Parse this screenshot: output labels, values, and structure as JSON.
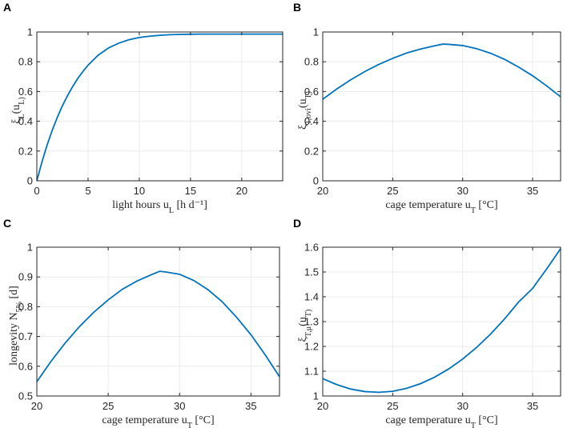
{
  "colors": {
    "line": "#0072bd",
    "grid": "#ebebeb",
    "axis": "#262626"
  },
  "chart_data": [
    {
      "panel": "A",
      "type": "line",
      "xlabel": "light hours u_L [h d⁻¹]",
      "ylabel": "ξ_L(u_L)",
      "xlim": [
        0,
        24
      ],
      "ylim": [
        0,
        1
      ],
      "xticks": [
        0,
        5,
        10,
        15,
        20
      ],
      "xtick_labels": [
        "0",
        "5",
        "10",
        "15",
        "20"
      ],
      "yticks": [
        0,
        0.2,
        0.4,
        0.6,
        0.8,
        1
      ],
      "ytick_labels": [
        "0",
        "0.2",
        "0.4",
        "0.6",
        "0.8",
        "1"
      ],
      "grid": true,
      "series": [
        {
          "name": "xi_L",
          "x": [
            0,
            0.5,
            1,
            1.5,
            2,
            2.5,
            3,
            3.5,
            4,
            4.5,
            5,
            6,
            7,
            8,
            9,
            10,
            11,
            12,
            13,
            14,
            15,
            16,
            18,
            20,
            22,
            24
          ],
          "y": [
            0,
            0.127,
            0.24,
            0.339,
            0.427,
            0.505,
            0.573,
            0.634,
            0.688,
            0.735,
            0.777,
            0.845,
            0.893,
            0.925,
            0.948,
            0.963,
            0.972,
            0.978,
            0.982,
            0.984,
            0.985,
            0.986,
            0.986,
            0.986,
            0.986,
            0.986
          ]
        }
      ]
    },
    {
      "panel": "B",
      "type": "line",
      "xlabel": "cage temperature u_T [°C]",
      "ylabel": "ξ_T,ovi(u_T)",
      "xlim": [
        20,
        37
      ],
      "ylim": [
        0,
        1
      ],
      "xticks": [
        20,
        25,
        30,
        35
      ],
      "xtick_labels": [
        "20",
        "25",
        "30",
        "35"
      ],
      "yticks": [
        0,
        0.2,
        0.4,
        0.6,
        0.8,
        1
      ],
      "ytick_labels": [
        "0",
        "0.2",
        "0.4",
        "0.6",
        "0.8",
        "1"
      ],
      "grid": true,
      "series": [
        {
          "name": "xi_T_ovi",
          "x": [
            20,
            21,
            22,
            23,
            24,
            25,
            26,
            27,
            28,
            28.6,
            29,
            30,
            31,
            32,
            33,
            34,
            35,
            36,
            37
          ],
          "y": [
            0.548,
            0.617,
            0.679,
            0.734,
            0.782,
            0.823,
            0.859,
            0.886,
            0.907,
            0.919,
            0.917,
            0.909,
            0.888,
            0.857,
            0.816,
            0.764,
            0.706,
            0.638,
            0.565
          ]
        }
      ]
    },
    {
      "panel": "C",
      "type": "line",
      "xlabel": "cage temperature u_T [°C]",
      "ylabel": "longevity N_5% [d]",
      "xlim": [
        20,
        37
      ],
      "ylim": [
        0.5,
        1
      ],
      "xticks": [
        20,
        25,
        30,
        35
      ],
      "xtick_labels": [
        "20",
        "25",
        "30",
        "35"
      ],
      "yticks": [
        0.5,
        0.6,
        0.7,
        0.8,
        0.9,
        1
      ],
      "ytick_labels": [
        "0.5",
        "0.6",
        "0.7",
        "0.8",
        "0.9",
        "1"
      ],
      "grid": true,
      "series": [
        {
          "name": "longevity",
          "x": [
            20,
            21,
            22,
            23,
            24,
            25,
            26,
            27,
            28,
            28.6,
            29,
            30,
            31,
            32,
            33,
            34,
            35,
            36,
            37
          ],
          "y": [
            0.548,
            0.617,
            0.679,
            0.734,
            0.782,
            0.823,
            0.859,
            0.886,
            0.907,
            0.919,
            0.917,
            0.909,
            0.888,
            0.857,
            0.816,
            0.764,
            0.706,
            0.638,
            0.565
          ]
        }
      ]
    },
    {
      "panel": "D",
      "type": "line",
      "xlabel": "cage temperature u_T [°C]",
      "ylabel": "ξ_T,μ(u_T)",
      "xlim": [
        20,
        37
      ],
      "ylim": [
        1,
        1.6
      ],
      "xticks": [
        20,
        25,
        30,
        35
      ],
      "xtick_labels": [
        "20",
        "25",
        "30",
        "35"
      ],
      "yticks": [
        1,
        1.1,
        1.2,
        1.3,
        1.4,
        1.5,
        1.6
      ],
      "ytick_labels": [
        "1",
        "1.1",
        "1.2",
        "1.3",
        "1.4",
        "1.5",
        "1.6"
      ],
      "grid": true,
      "series": [
        {
          "name": "xi_T_mu",
          "x": [
            20,
            21,
            22,
            23,
            24,
            25,
            26,
            27,
            28,
            29,
            30,
            31,
            32,
            33,
            34,
            35,
            36,
            37
          ],
          "y": [
            1.07,
            1.046,
            1.028,
            1.018,
            1.015,
            1.019,
            1.031,
            1.05,
            1.076,
            1.109,
            1.149,
            1.196,
            1.25,
            1.311,
            1.379,
            1.434,
            1.512,
            1.594
          ]
        }
      ]
    }
  ]
}
